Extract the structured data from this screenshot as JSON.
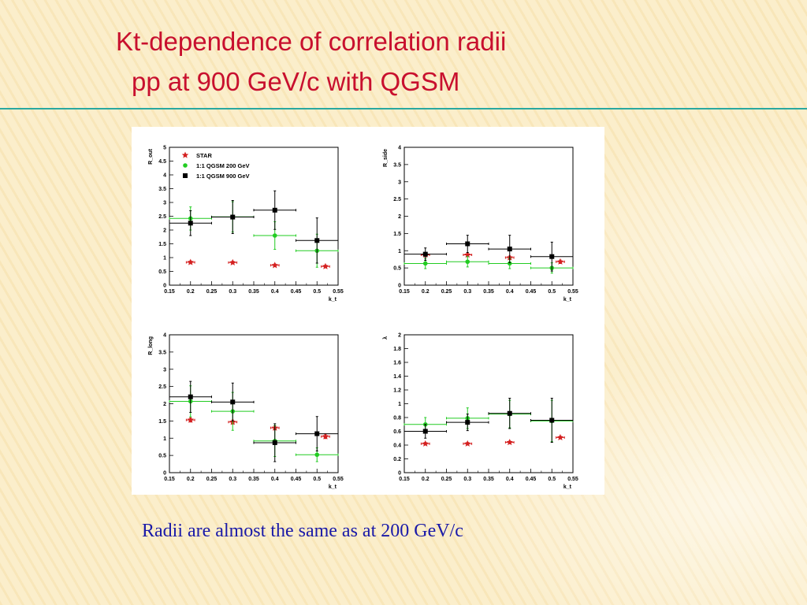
{
  "slide": {
    "title_line1": "Kt-dependence of correlation radii",
    "title_line2": "pp at 900 GeV/c with QGSM",
    "subtitle": "Radii are almost the same as at 200 GeV/c"
  },
  "colors": {
    "title": "#c8102e",
    "subtitle": "#1a1aa8",
    "rule": "#2aa8a0",
    "star": "#d42020",
    "qgsm200": "#22cc22",
    "qgsm900": "#000000"
  },
  "chart_data": [
    {
      "type": "scatter",
      "panel": "R_out",
      "ylabel": "R_out",
      "xlabel": "k_t",
      "xlim": [
        0.15,
        0.55
      ],
      "ylim": [
        0,
        5
      ],
      "xticks": [
        "0.15",
        "0.2",
        "0.25",
        "0.3",
        "0.35",
        "0.4",
        "0.45",
        "0.5",
        "0.55"
      ],
      "yticks": [
        "0",
        "0.5",
        "1",
        "1.5",
        "2",
        "2.5",
        "3",
        "3.5",
        "4",
        "4.5",
        "5"
      ],
      "legend": {
        "position": "top-left",
        "entries": [
          "STAR",
          "1:1 QGSM 200 GeV",
          "1:1 QGSM  900 GeV"
        ]
      },
      "series": [
        {
          "name": "STAR",
          "marker": "star",
          "points": [
            {
              "x": 0.2,
              "y": 0.83,
              "yerr": 0.05,
              "xerr": 0.01
            },
            {
              "x": 0.3,
              "y": 0.82,
              "yerr": 0.05,
              "xerr": 0.01
            },
            {
              "x": 0.4,
              "y": 0.72,
              "yerr": 0.05,
              "xerr": 0.01
            },
            {
              "x": 0.52,
              "y": 0.68,
              "yerr": 0.05,
              "xerr": 0.01
            }
          ]
        },
        {
          "name": "1:1 QGSM 200 GeV",
          "marker": "circle",
          "points": [
            {
              "x": 0.2,
              "y": 2.42,
              "yerr": 0.42,
              "xerr": 0.05
            },
            {
              "x": 0.3,
              "y": 2.48,
              "yerr": 0.55,
              "xerr": 0.05
            },
            {
              "x": 0.4,
              "y": 1.8,
              "yerr": 0.5,
              "xerr": 0.05
            },
            {
              "x": 0.5,
              "y": 1.25,
              "yerr": 0.6,
              "xerr": 0.05
            }
          ]
        },
        {
          "name": "1:1 QGSM  900 GeV",
          "marker": "square",
          "points": [
            {
              "x": 0.2,
              "y": 2.25,
              "yerr": 0.45,
              "xerr": 0.05
            },
            {
              "x": 0.3,
              "y": 2.47,
              "yerr": 0.6,
              "xerr": 0.05
            },
            {
              "x": 0.4,
              "y": 2.72,
              "yerr": 0.7,
              "xerr": 0.05
            },
            {
              "x": 0.5,
              "y": 1.62,
              "yerr": 0.82,
              "xerr": 0.05
            }
          ]
        }
      ]
    },
    {
      "type": "scatter",
      "panel": "R_side",
      "ylabel": "R_side",
      "xlabel": "k_t",
      "xlim": [
        0.15,
        0.55
      ],
      "ylim": [
        0,
        4
      ],
      "xticks": [
        "0.15",
        "0.2",
        "0.25",
        "0.3",
        "0.35",
        "0.4",
        "0.45",
        "0.5",
        "0.55"
      ],
      "yticks": [
        "0",
        "0.5",
        "1",
        "1.5",
        "2",
        "2.5",
        "3",
        "3.5",
        "4"
      ],
      "series": [
        {
          "name": "STAR",
          "marker": "star",
          "points": [
            {
              "x": 0.2,
              "y": 0.88,
              "yerr": 0.05,
              "xerr": 0.01
            },
            {
              "x": 0.3,
              "y": 0.88,
              "yerr": 0.05,
              "xerr": 0.01
            },
            {
              "x": 0.4,
              "y": 0.8,
              "yerr": 0.05,
              "xerr": 0.01
            },
            {
              "x": 0.52,
              "y": 0.68,
              "yerr": 0.05,
              "xerr": 0.01
            }
          ]
        },
        {
          "name": "1:1 QGSM 200 GeV",
          "marker": "circle",
          "points": [
            {
              "x": 0.2,
              "y": 0.63,
              "yerr": 0.15,
              "xerr": 0.05
            },
            {
              "x": 0.3,
              "y": 0.68,
              "yerr": 0.15,
              "xerr": 0.05
            },
            {
              "x": 0.4,
              "y": 0.63,
              "yerr": 0.15,
              "xerr": 0.05
            },
            {
              "x": 0.5,
              "y": 0.5,
              "yerr": 0.15,
              "xerr": 0.05
            }
          ]
        },
        {
          "name": "1:1 QGSM  900 GeV",
          "marker": "square",
          "points": [
            {
              "x": 0.2,
              "y": 0.9,
              "yerr": 0.18,
              "xerr": 0.05
            },
            {
              "x": 0.3,
              "y": 1.2,
              "yerr": 0.25,
              "xerr": 0.05
            },
            {
              "x": 0.4,
              "y": 1.05,
              "yerr": 0.4,
              "xerr": 0.05
            },
            {
              "x": 0.5,
              "y": 0.83,
              "yerr": 0.42,
              "xerr": 0.05
            }
          ]
        }
      ]
    },
    {
      "type": "scatter",
      "panel": "R_long",
      "ylabel": "R_long",
      "xlabel": "k_t",
      "xlim": [
        0.15,
        0.55
      ],
      "ylim": [
        0,
        4
      ],
      "xticks": [
        "0.15",
        "0.2",
        "0.25",
        "0.3",
        "0.35",
        "0.4",
        "0.45",
        "0.5",
        "0.55"
      ],
      "yticks": [
        "0",
        "0.5",
        "1",
        "1.5",
        "2",
        "2.5",
        "3",
        "3.5",
        "4"
      ],
      "series": [
        {
          "name": "STAR",
          "marker": "star",
          "points": [
            {
              "x": 0.2,
              "y": 1.53,
              "yerr": 0.06,
              "xerr": 0.01
            },
            {
              "x": 0.3,
              "y": 1.47,
              "yerr": 0.06,
              "xerr": 0.01
            },
            {
              "x": 0.4,
              "y": 1.3,
              "yerr": 0.06,
              "xerr": 0.01
            },
            {
              "x": 0.52,
              "y": 1.05,
              "yerr": 0.06,
              "xerr": 0.01
            }
          ]
        },
        {
          "name": "1:1 QGSM 200 GeV",
          "marker": "circle",
          "points": [
            {
              "x": 0.2,
              "y": 2.07,
              "yerr": 0.45,
              "xerr": 0.05
            },
            {
              "x": 0.3,
              "y": 1.78,
              "yerr": 0.55,
              "xerr": 0.05
            },
            {
              "x": 0.4,
              "y": 0.92,
              "yerr": 0.45,
              "xerr": 0.05
            },
            {
              "x": 0.5,
              "y": 0.52,
              "yerr": 0.2,
              "xerr": 0.05
            }
          ]
        },
        {
          "name": "1:1 QGSM  900 GeV",
          "marker": "square",
          "points": [
            {
              "x": 0.2,
              "y": 2.2,
              "yerr": 0.45,
              "xerr": 0.05
            },
            {
              "x": 0.3,
              "y": 2.05,
              "yerr": 0.55,
              "xerr": 0.05
            },
            {
              "x": 0.4,
              "y": 0.87,
              "yerr": 0.55,
              "xerr": 0.05
            },
            {
              "x": 0.5,
              "y": 1.13,
              "yerr": 0.5,
              "xerr": 0.05
            }
          ]
        }
      ]
    },
    {
      "type": "scatter",
      "panel": "lambda",
      "ylabel": "λ",
      "xlabel": "k_t",
      "xlim": [
        0.15,
        0.55
      ],
      "ylim": [
        0,
        2
      ],
      "xticks": [
        "0.15",
        "0.2",
        "0.25",
        "0.3",
        "0.35",
        "0.4",
        "0.45",
        "0.5",
        "0.55"
      ],
      "yticks": [
        "0",
        "0.2",
        "0.4",
        "0.6",
        "0.8",
        "1",
        "1.2",
        "1.4",
        "1.6",
        "1.8",
        "2"
      ],
      "series": [
        {
          "name": "STAR",
          "marker": "star",
          "points": [
            {
              "x": 0.2,
              "y": 0.42,
              "yerr": 0.02,
              "xerr": 0.01
            },
            {
              "x": 0.3,
              "y": 0.42,
              "yerr": 0.02,
              "xerr": 0.01
            },
            {
              "x": 0.4,
              "y": 0.44,
              "yerr": 0.02,
              "xerr": 0.01
            },
            {
              "x": 0.52,
              "y": 0.51,
              "yerr": 0.02,
              "xerr": 0.01
            }
          ]
        },
        {
          "name": "1:1 QGSM 200 GeV",
          "marker": "circle",
          "points": [
            {
              "x": 0.2,
              "y": 0.7,
              "yerr": 0.1,
              "xerr": 0.05
            },
            {
              "x": 0.3,
              "y": 0.79,
              "yerr": 0.15,
              "xerr": 0.05
            },
            {
              "x": 0.4,
              "y": 0.85,
              "yerr": 0.2,
              "xerr": 0.05
            },
            {
              "x": 0.5,
              "y": 0.75,
              "yerr": 0.3,
              "xerr": 0.05
            }
          ]
        },
        {
          "name": "1:1 QGSM  900 GeV",
          "marker": "square",
          "points": [
            {
              "x": 0.2,
              "y": 0.6,
              "yerr": 0.1,
              "xerr": 0.05
            },
            {
              "x": 0.3,
              "y": 0.73,
              "yerr": 0.12,
              "xerr": 0.05
            },
            {
              "x": 0.4,
              "y": 0.86,
              "yerr": 0.22,
              "xerr": 0.05
            },
            {
              "x": 0.5,
              "y": 0.76,
              "yerr": 0.32,
              "xerr": 0.05
            }
          ]
        }
      ]
    }
  ]
}
